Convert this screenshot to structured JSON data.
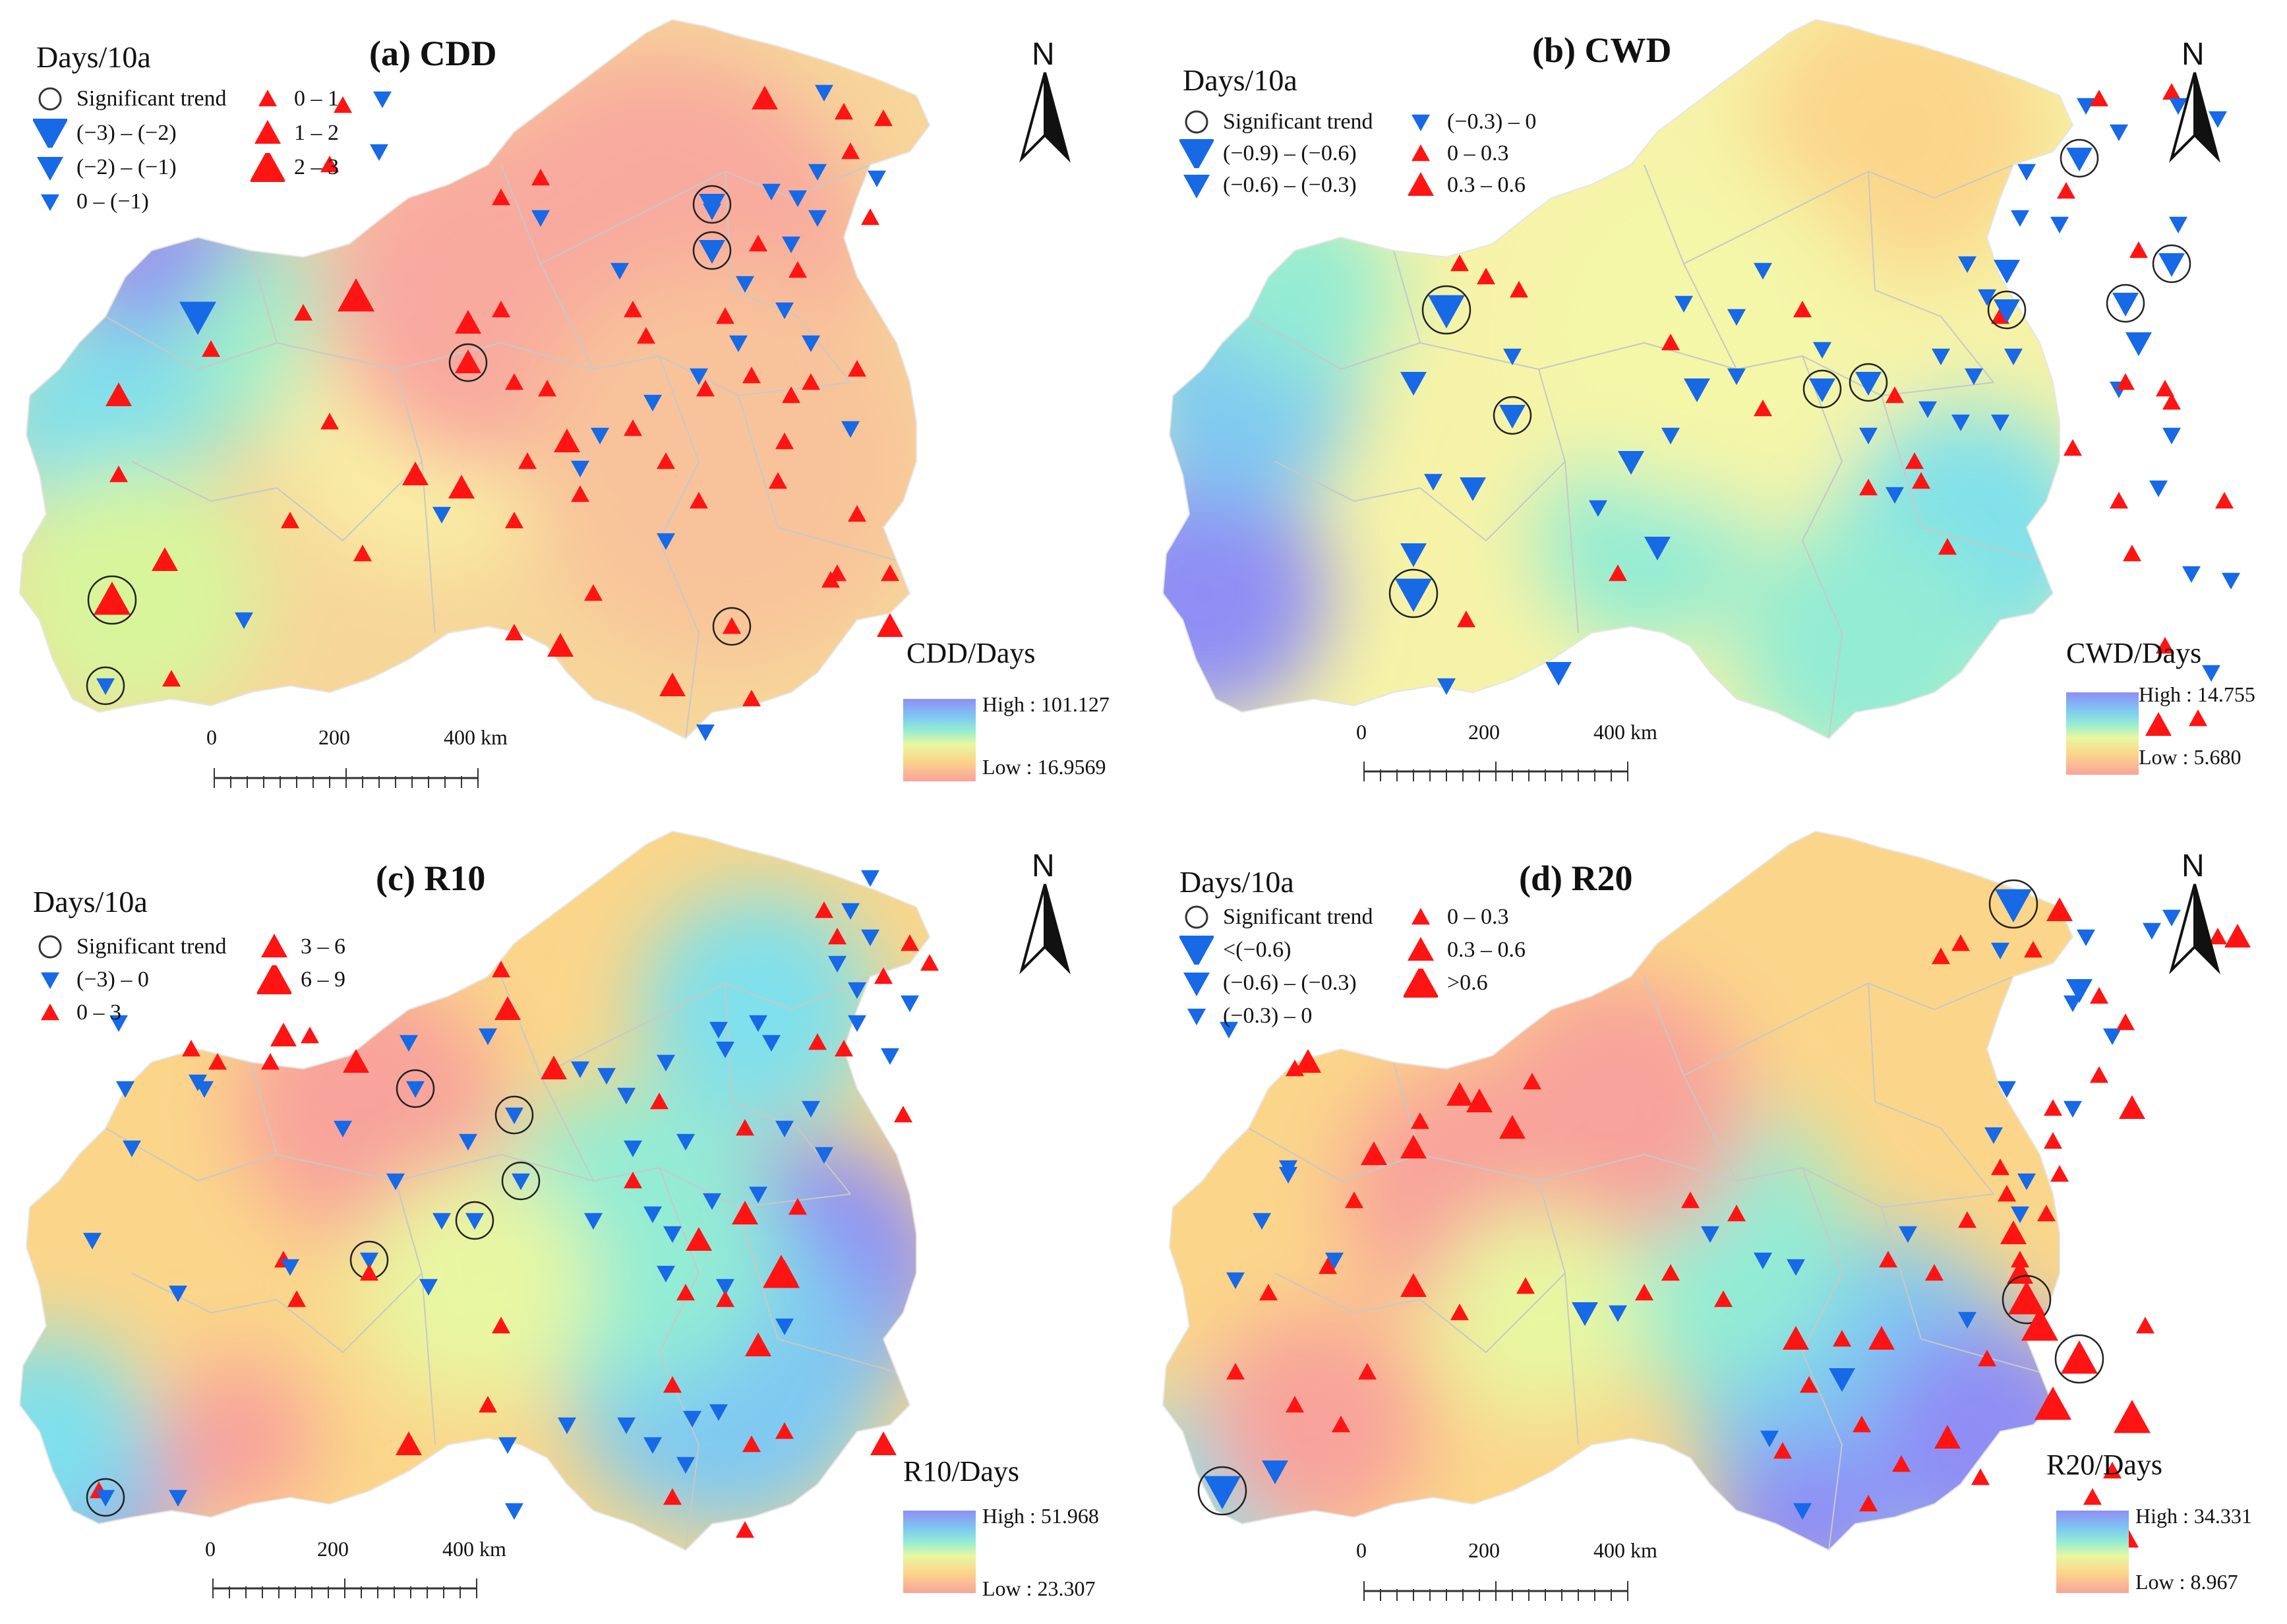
{
  "panels": [
    {
      "id": "a",
      "title": "(a) CDD",
      "title_bold": true,
      "unit": "Days/10a",
      "legend": [
        {
          "symbol": "circle",
          "label": "Significant trend"
        },
        {
          "symbol": "down-large",
          "label": "(−3) – (−2)"
        },
        {
          "symbol": "down-medium",
          "label": "(−2) – (−1)"
        },
        {
          "symbol": "down-small",
          "label": "0 – (−1)"
        },
        {
          "symbol": "up-small",
          "label": "0 – 1"
        },
        {
          "symbol": "up-medium",
          "label": "1 – 2"
        },
        {
          "symbol": "up-large",
          "label": "2 – 3"
        }
      ],
      "colorbar_title": "CDD/Days",
      "high_label": "High : 101.127",
      "low_label": "Low : 16.9569",
      "scale_labels": [
        "0",
        "200",
        "400 km"
      ],
      "north_label": "N",
      "heat_scheme": "cdd"
    },
    {
      "id": "b",
      "title": "(b)  CWD",
      "title_bold": false,
      "unit": "Days/10a",
      "legend": [
        {
          "symbol": "circle",
          "label": "Significant trend"
        },
        {
          "symbol": "down-large",
          "label": "(−0.9) – (−0.6)"
        },
        {
          "symbol": "down-medium",
          "label": "(−0.6) – (−0.3)"
        },
        {
          "symbol": "down-small",
          "label": "(−0.3) – 0"
        },
        {
          "symbol": "up-small",
          "label": "0 – 0.3"
        },
        {
          "symbol": "up-medium",
          "label": "0.3 – 0.6"
        }
      ],
      "colorbar_title": "CWD/Days",
      "high_label": "High : 14.755",
      "low_label": "Low : 5.680",
      "scale_labels": [
        "0",
        "200",
        "400 km"
      ],
      "north_label": "N",
      "heat_scheme": "cwd"
    },
    {
      "id": "c",
      "title": "(c) R10",
      "title_bold": true,
      "unit": "Days/10a",
      "legend": [
        {
          "symbol": "circle",
          "label": "Significant trend"
        },
        {
          "symbol": "down-small",
          "label": "(−3) – 0"
        },
        {
          "symbol": "up-small",
          "label": "0 – 3"
        },
        {
          "symbol": "up-medium",
          "label": "3 – 6"
        },
        {
          "symbol": "up-large",
          "label": "6 – 9"
        }
      ],
      "colorbar_title": "R10/Days",
      "high_label": "High : 51.968",
      "low_label": "Low : 23.307",
      "scale_labels": [
        "0",
        "200",
        "400 km"
      ],
      "north_label": "N",
      "heat_scheme": "r10"
    },
    {
      "id": "d",
      "title": "(d) R20",
      "title_bold": true,
      "unit": "Days/10a",
      "legend": [
        {
          "symbol": "circle",
          "label": "Significant trend"
        },
        {
          "symbol": "down-large",
          "label": "<(−0.6)"
        },
        {
          "symbol": "down-medium",
          "label": "(−0.6) – (−0.3)"
        },
        {
          "symbol": "down-small",
          "label": "(−0.3) – 0"
        },
        {
          "symbol": "up-small",
          "label": "0 – 0.3"
        },
        {
          "symbol": "up-medium",
          "label": "0.3 – 0.6"
        },
        {
          "symbol": "up-large",
          "label": ">0.6"
        }
      ],
      "colorbar_title": "R20/Days",
      "high_label": "High : 34.331",
      "low_label": "Low : 8.967",
      "scale_labels": [
        "0",
        "200",
        "400 km"
      ],
      "north_label": "N",
      "heat_scheme": "r20"
    }
  ],
  "colors": {
    "increase": "#ff1414",
    "decrease": "#1769e6",
    "high": "#8f8ef5",
    "low": "#f8a39b",
    "border": "#c8c8c8"
  }
}
